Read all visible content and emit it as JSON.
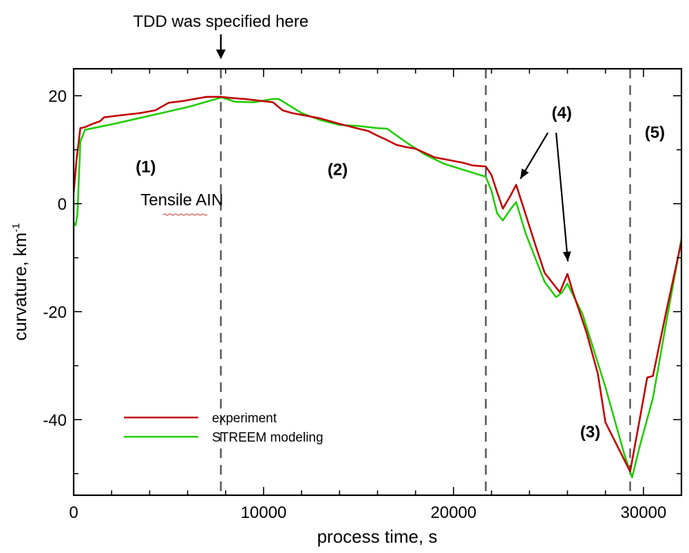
{
  "chart_data": {
    "type": "line",
    "title": "",
    "xlabel": "process time, s",
    "ylabel": "curvature, km",
    "ylabel_superscript": "-1",
    "xlim": [
      0,
      32000
    ],
    "ylim": [
      -54,
      25
    ],
    "xticks": [
      0,
      10000,
      20000,
      30000
    ],
    "xtick_labels": [
      "0",
      "10000",
      "20000",
      "30000"
    ],
    "yticks": [
      20,
      0,
      -20,
      -40
    ],
    "ytick_labels": [
      "20",
      "0",
      "-20",
      "-40"
    ],
    "grid": false,
    "legend_position": "lower-left",
    "series": [
      {
        "name": "experiment",
        "color": "#c00000",
        "points": [
          [
            0,
            2
          ],
          [
            150,
            8
          ],
          [
            350,
            14
          ],
          [
            600,
            14.2
          ],
          [
            1000,
            14.8
          ],
          [
            1400,
            15.3
          ],
          [
            1600,
            16
          ],
          [
            2500,
            16.4
          ],
          [
            3500,
            16.8
          ],
          [
            4300,
            17.3
          ],
          [
            5000,
            18.7
          ],
          [
            5700,
            19
          ],
          [
            6500,
            19.5
          ],
          [
            7000,
            19.8
          ],
          [
            7750,
            19.8
          ],
          [
            8300,
            19.6
          ],
          [
            9000,
            19.4
          ],
          [
            10500,
            18.8
          ],
          [
            11000,
            17.3
          ],
          [
            11500,
            16.8
          ],
          [
            13000,
            15.8
          ],
          [
            14000,
            14.8
          ],
          [
            15000,
            13.9
          ],
          [
            15500,
            13.5
          ],
          [
            16000,
            12.6
          ],
          [
            16500,
            11.8
          ],
          [
            17000,
            10.9
          ],
          [
            17500,
            10.5
          ],
          [
            18000,
            10.2
          ],
          [
            18500,
            9.4
          ],
          [
            19000,
            8.6
          ],
          [
            20500,
            7.6
          ],
          [
            21000,
            7.1
          ],
          [
            21700,
            6.9
          ],
          [
            22000,
            5.3
          ],
          [
            22300,
            2.1
          ],
          [
            22600,
            -0.9
          ],
          [
            23000,
            1.5
          ],
          [
            23300,
            3.5
          ],
          [
            23800,
            -2
          ],
          [
            24300,
            -7.5
          ],
          [
            24800,
            -12.8
          ],
          [
            25600,
            -16.4
          ],
          [
            26000,
            -13
          ],
          [
            26300,
            -16.5
          ],
          [
            27000,
            -23.8
          ],
          [
            27600,
            -31.5
          ],
          [
            28000,
            -40.5
          ],
          [
            29300,
            -49.6
          ],
          [
            29800,
            -40
          ],
          [
            30200,
            -32.2
          ],
          [
            30500,
            -31.9
          ],
          [
            31200,
            -20
          ],
          [
            32000,
            -7
          ]
        ]
      },
      {
        "name": "STREEM modeling",
        "color": "#22cc00",
        "points": [
          [
            0,
            -3.5
          ],
          [
            100,
            -4
          ],
          [
            200,
            -2
          ],
          [
            350,
            11.5
          ],
          [
            600,
            13.7
          ],
          [
            2000,
            14.7
          ],
          [
            4000,
            16.3
          ],
          [
            6000,
            17.9
          ],
          [
            7800,
            19.7
          ],
          [
            8500,
            18.9
          ],
          [
            9500,
            18.8
          ],
          [
            10500,
            19.4
          ],
          [
            10800,
            19.4
          ],
          [
            12000,
            16.8
          ],
          [
            13000,
            15.5
          ],
          [
            14000,
            14.6
          ],
          [
            15000,
            14.4
          ],
          [
            16000,
            14
          ],
          [
            16500,
            13.9
          ],
          [
            17500,
            11.4
          ],
          [
            18500,
            9.1
          ],
          [
            19500,
            7.4
          ],
          [
            20500,
            6.3
          ],
          [
            21700,
            5
          ],
          [
            22000,
            2.4
          ],
          [
            22300,
            -1.8
          ],
          [
            22600,
            -3.1
          ],
          [
            23000,
            -1
          ],
          [
            23300,
            0.3
          ],
          [
            23800,
            -5.5
          ],
          [
            24300,
            -10
          ],
          [
            24800,
            -14.5
          ],
          [
            25400,
            -17.3
          ],
          [
            25700,
            -16.5
          ],
          [
            26000,
            -14.8
          ],
          [
            26800,
            -20.5
          ],
          [
            28000,
            -34
          ],
          [
            29000,
            -46.5
          ],
          [
            29400,
            -50.7
          ],
          [
            29800,
            -45
          ],
          [
            30500,
            -36
          ],
          [
            31200,
            -22
          ],
          [
            32000,
            -6.5
          ]
        ]
      }
    ],
    "vlines": [
      7750,
      21700,
      29300
    ],
    "annotations": [
      {
        "text": "TDD was specified here",
        "x": 7750,
        "y": 32.8,
        "bold": false,
        "arrow_to": [
          7750,
          26.3
        ]
      },
      {
        "text": "(1)",
        "x": 3800,
        "y": 5.8,
        "bold": true
      },
      {
        "text": "(2)",
        "x": 13900,
        "y": 5.3,
        "bold": true
      },
      {
        "text": "(3)",
        "x": 27200,
        "y": -43.3,
        "bold": true
      },
      {
        "text": "(4)",
        "x": 25700,
        "y": 15.8,
        "bold": true
      },
      {
        "text": "(5)",
        "x": 30600,
        "y": 12.2,
        "bold": true
      },
      {
        "text": "Tensile AIN",
        "x": 5700,
        "y": -0.3,
        "bold": false
      }
    ]
  }
}
